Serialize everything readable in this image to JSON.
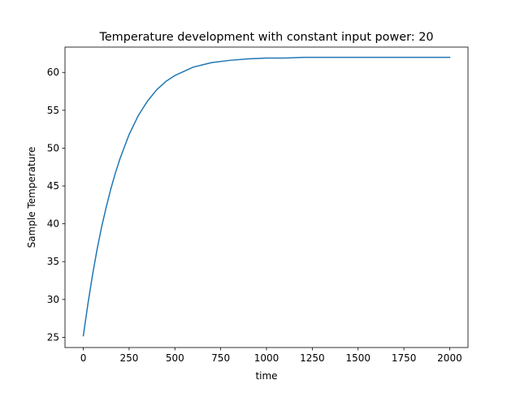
{
  "chart_data": {
    "type": "line",
    "title": "Temperature development with constant input power: 20",
    "xlabel": "time",
    "ylabel": "Sample Temperature",
    "xlim": [
      -100,
      2100
    ],
    "ylim": [
      23.65,
      63.35
    ],
    "xticks": [
      0,
      250,
      500,
      750,
      1000,
      1250,
      1500,
      1750,
      2000
    ],
    "xtick_labels": [
      "0",
      "250",
      "500",
      "750",
      "1000",
      "1250",
      "1500",
      "1750",
      "2000"
    ],
    "yticks": [
      25,
      30,
      35,
      40,
      45,
      50,
      55,
      60
    ],
    "ytick_labels": [
      "25",
      "30",
      "35",
      "40",
      "45",
      "50",
      "55",
      "60"
    ],
    "grid": false,
    "series": [
      {
        "color": "#1f77b4",
        "x": [
          0,
          25,
          50,
          75,
          100,
          125,
          150,
          175,
          200,
          250,
          300,
          350,
          400,
          450,
          500,
          600,
          700,
          800,
          900,
          1000,
          1100,
          1200,
          1300,
          1400,
          1500,
          1600,
          1700,
          1800,
          1900,
          2000
        ],
        "y": [
          25.2,
          29.4,
          33.2,
          36.6,
          39.6,
          42.2,
          44.6,
          46.7,
          48.6,
          51.8,
          54.3,
          56.2,
          57.7,
          58.8,
          59.6,
          60.7,
          61.3,
          61.6,
          61.8,
          61.9,
          61.9,
          62.0,
          62.0,
          62.0,
          62.0,
          62.0,
          62.0,
          62.0,
          62.0,
          62.0
        ]
      }
    ]
  }
}
